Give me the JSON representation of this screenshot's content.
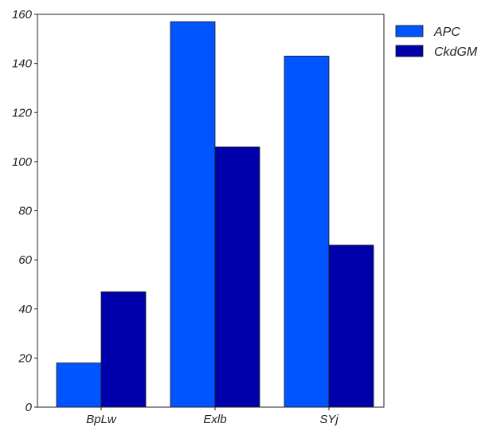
{
  "chart_data": {
    "type": "bar",
    "categories": [
      "BpLw",
      "Exlb",
      "SYj"
    ],
    "series": [
      {
        "name": "APC",
        "values": [
          18,
          157,
          143
        ],
        "color": "#0055ff"
      },
      {
        "name": "CkdGM",
        "values": [
          47,
          106,
          66
        ],
        "color": "#0000aa"
      }
    ],
    "title": "",
    "xlabel": "",
    "ylabel": "",
    "ylim": [
      0,
      160
    ],
    "yticks": [
      0,
      20,
      40,
      60,
      80,
      100,
      120,
      140,
      160
    ],
    "grid": false,
    "legend_position": "outside-top-right"
  }
}
